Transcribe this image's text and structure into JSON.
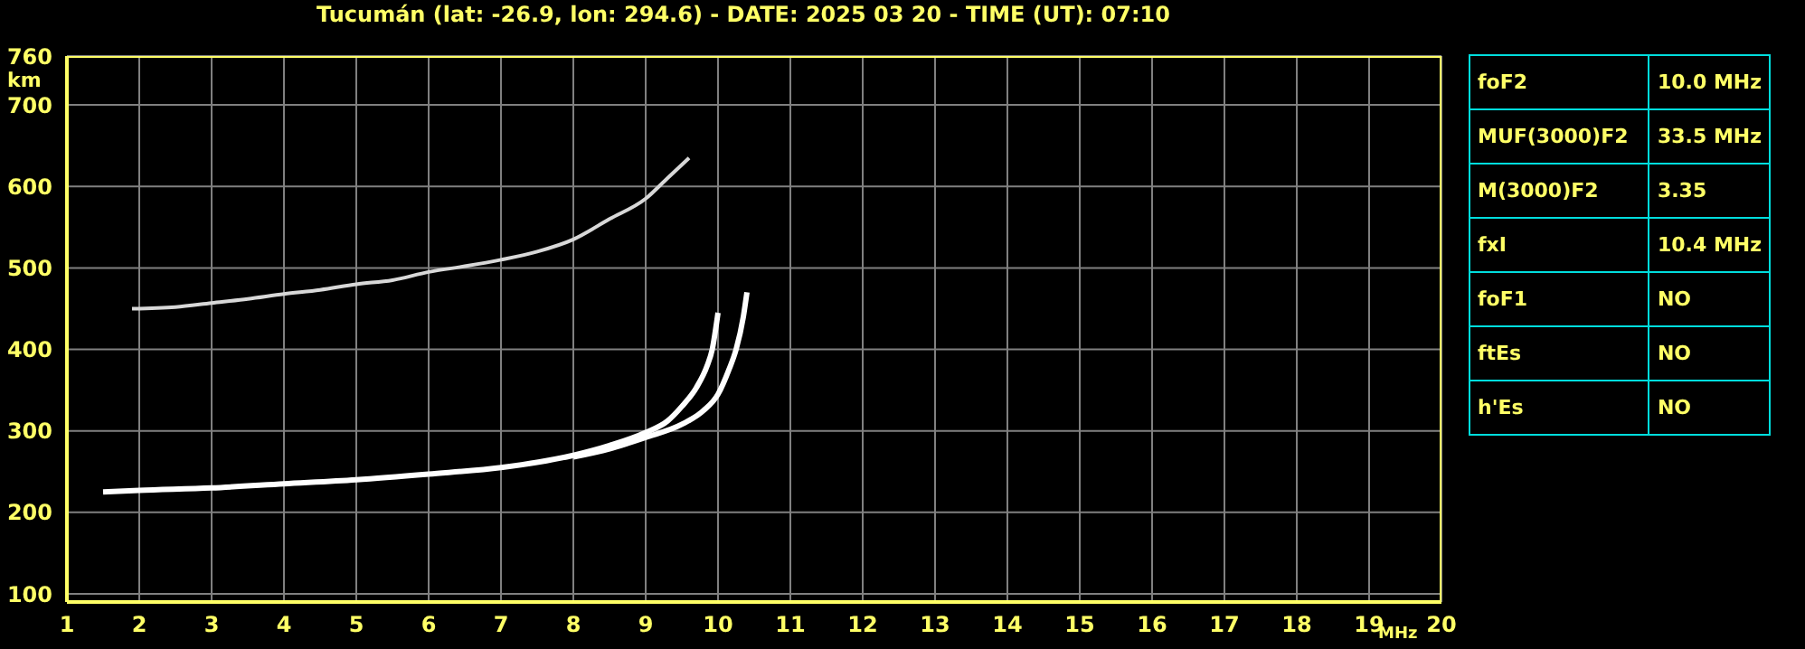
{
  "chart_data": [
    {
      "type": "line",
      "title": "Tucumán (lat: -26.9, lon: 294.6) - DATE: 2025 03 20 - TIME (UT): 07:10",
      "xlabel": "MHz",
      "ylabel": "km",
      "marker": "none",
      "grid": true,
      "xlim": [
        1,
        20
      ],
      "xticks": [
        1,
        2,
        3,
        4,
        5,
        6,
        7,
        8,
        9,
        10,
        11,
        12,
        13,
        14,
        15,
        16,
        17,
        18,
        19,
        20
      ],
      "ylim": [
        90,
        760
      ],
      "yticks": [
        100,
        200,
        300,
        400,
        500,
        600,
        700,
        760
      ],
      "series": [
        {
          "color": "#ffffff",
          "x": [
            1.5,
            2,
            3,
            4,
            5,
            6,
            7,
            8,
            8.5,
            9,
            9.3,
            9.5,
            9.7,
            9.85,
            9.92,
            10.0
          ],
          "values": [
            225,
            227,
            230,
            235,
            240,
            247,
            255,
            270,
            282,
            298,
            312,
            330,
            353,
            380,
            400,
            445
          ]
        },
        {
          "color": "#ffffff",
          "x": [
            8,
            8.5,
            9,
            9.5,
            9.8,
            10.0,
            10.15,
            10.25,
            10.35,
            10.4
          ],
          "values": [
            268,
            278,
            292,
            308,
            325,
            345,
            375,
            400,
            440,
            470
          ]
        },
        {
          "color": "#d8d8d8",
          "x": [
            1.9,
            2.5,
            3,
            3.5,
            4,
            4.5,
            5,
            5.5,
            6,
            6.5,
            7,
            7.5,
            8,
            8.5,
            9,
            9.3,
            9.6
          ],
          "values": [
            450,
            452,
            457,
            462,
            468,
            473,
            480,
            485,
            495,
            502,
            510,
            520,
            535,
            560,
            585,
            610,
            635
          ]
        }
      ]
    },
    {
      "type": "other",
      "annotations": [
        "foF2",
        "10.0 MHz",
        "MUF(3000)F2",
        "33.5 MHz",
        "M(3000)F2",
        "3.35",
        "fxI",
        "10.4 MHz",
        "foF1",
        "NO",
        "ftEs",
        "NO",
        "h'Es",
        "NO"
      ]
    }
  ]
}
